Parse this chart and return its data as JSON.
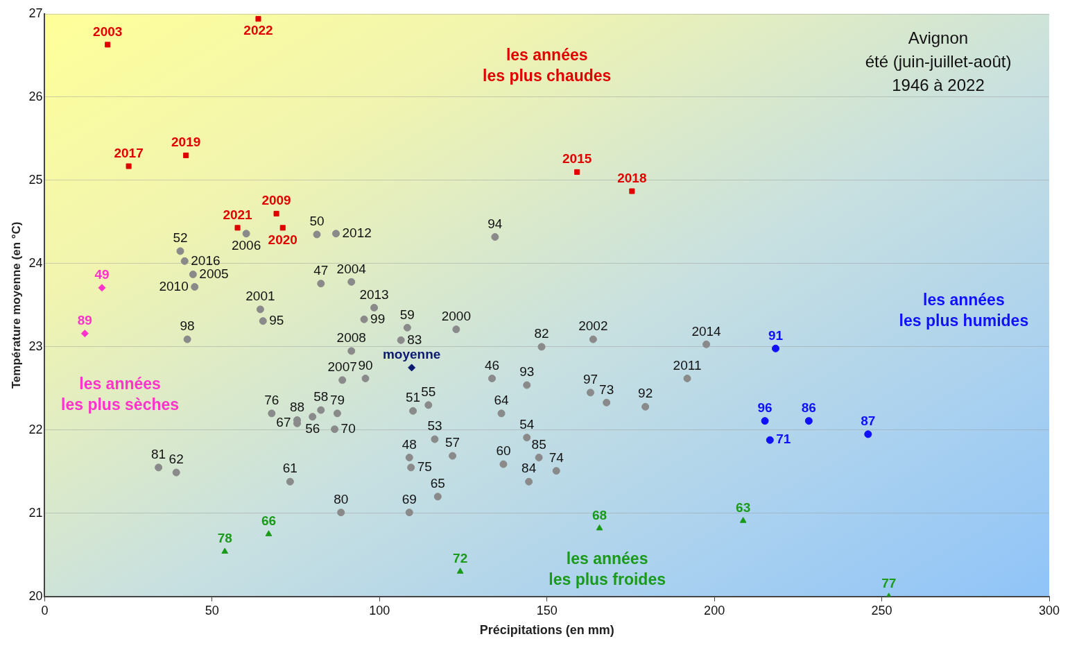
{
  "chart_data": {
    "type": "scatter",
    "title": "Avignon",
    "subtitle": "été (juin-juillet-août)\n1946 à 2022",
    "xlabel": "Précipitations (en mm)",
    "ylabel": "Température moyenne (en °C)",
    "xlim": [
      0,
      300
    ],
    "xticks": [
      0,
      50,
      100,
      150,
      200,
      250,
      300
    ],
    "ylim": [
      20,
      27
    ],
    "yticks": [
      20,
      21,
      22,
      23,
      24,
      25,
      26,
      27
    ],
    "grid": "y",
    "legend": false,
    "series": [
      {
        "color": "#8a8a8a",
        "marker": "circle",
        "x": [
          60.2,
          81.3,
          87.0,
          40.5,
          41.8,
          44.3,
          44.8,
          82.5,
          91.6,
          64.4,
          65.2,
          95.4,
          98.4,
          42.6,
          91.6,
          88.9,
          95.8,
          67.8,
          75.4,
          75.4,
          82.5,
          80.0,
          87.4,
          86.6,
          34.0,
          39.3,
          73.3,
          88.5,
          134.5,
          108.3,
          106.4,
          122.9,
          148.4,
          163.8,
          197.6,
          133.6,
          144.0,
          163.0,
          167.8,
          191.9,
          110.0,
          114.6,
          136.4,
          179.4,
          116.5,
          108.9,
          109.4,
          121.8,
          137.0,
          144.0,
          147.6,
          152.8,
          144.6,
          117.4,
          108.9
        ],
        "values": [
          24.36,
          24.35,
          24.36,
          24.15,
          24.03,
          23.87,
          23.72,
          23.76,
          23.78,
          23.45,
          23.31,
          23.33,
          23.47,
          23.09,
          22.95,
          22.6,
          22.62,
          22.2,
          22.12,
          22.08,
          22.24,
          22.16,
          22.2,
          22.01,
          21.55,
          21.49,
          21.38,
          21.01,
          24.32,
          23.23,
          23.08,
          23.21,
          23.0,
          23.09,
          23.03,
          22.62,
          22.54,
          22.45,
          22.33,
          22.62,
          22.23,
          22.3,
          22.2,
          22.28,
          21.89,
          21.67,
          21.55,
          21.69,
          21.59,
          21.91,
          21.67,
          21.51,
          21.38,
          21.2,
          21.01
        ]
      },
      {
        "color": "#e00000",
        "marker": "square",
        "x": [
          18.8,
          63.8,
          25.1,
          42.2,
          159.0,
          175.4,
          57.6,
          69.2,
          71.1
        ],
        "values": [
          26.63,
          26.94,
          25.17,
          25.3,
          25.1,
          24.87,
          24.43,
          24.6,
          24.43
        ]
      },
      {
        "color": "#1010ff",
        "marker": "circle",
        "x": [
          218.3,
          215.1,
          228.2,
          216.6,
          245.9
        ],
        "values": [
          22.98,
          22.11,
          22.11,
          21.88,
          21.95
        ]
      },
      {
        "color": "#ff33cc",
        "marker": "diamond",
        "x": [
          17.1,
          12.0
        ],
        "values": [
          23.71,
          23.16
        ]
      },
      {
        "color": "#1a9a1a",
        "marker": "triangle",
        "x": [
          53.8,
          66.9,
          124.1,
          165.7,
          208.6,
          252.1
        ],
        "values": [
          20.54,
          20.75,
          20.3,
          20.82,
          20.91,
          20.0
        ]
      },
      {
        "color": "#0b1a70",
        "marker": "diamond",
        "x": [
          109.6
        ],
        "values": [
          22.75
        ]
      }
    ],
    "annotations": [
      "les années\nles plus chaudes",
      "les années\nles plus humides",
      "les années\nles plus sèches",
      "les années\nles plus froides",
      {
        "text": "moyenne",
        "x": 109.6,
        "y": 22.75
      },
      {
        "text": "2003",
        "x": 18.8,
        "y": 26.63
      },
      {
        "text": "2022",
        "x": 63.8,
        "y": 26.94
      },
      {
        "text": "2017",
        "x": 25.1,
        "y": 25.17
      },
      {
        "text": "2019",
        "x": 42.2,
        "y": 25.3
      },
      {
        "text": "2015",
        "x": 159.0,
        "y": 25.1
      },
      {
        "text": "2018",
        "x": 175.4,
        "y": 24.87
      },
      {
        "text": "2021",
        "x": 57.6,
        "y": 24.43
      },
      {
        "text": "2009",
        "x": 69.2,
        "y": 24.6
      },
      {
        "text": "2020",
        "x": 71.1,
        "y": 24.43
      },
      {
        "text": "49",
        "x": 17.1,
        "y": 23.71
      },
      {
        "text": "89",
        "x": 12.0,
        "y": 23.16
      },
      {
        "text": "91",
        "x": 218.3,
        "y": 22.98
      },
      {
        "text": "96",
        "x": 215.1,
        "y": 22.11
      },
      {
        "text": "86",
        "x": 228.2,
        "y": 22.11
      },
      {
        "text": "71",
        "x": 216.6,
        "y": 21.88
      },
      {
        "text": "87",
        "x": 245.9,
        "y": 21.95
      },
      {
        "text": "78",
        "x": 53.8,
        "y": 20.54
      },
      {
        "text": "66",
        "x": 66.9,
        "y": 20.75
      },
      {
        "text": "72",
        "x": 124.1,
        "y": 20.3
      },
      {
        "text": "68",
        "x": 165.7,
        "y": 20.82
      },
      {
        "text": "63",
        "x": 208.6,
        "y": 20.91
      },
      {
        "text": "77",
        "x": 252.1,
        "y": 20.0
      },
      {
        "text": "2006",
        "x": 60.2,
        "y": 24.36
      },
      {
        "text": "50",
        "x": 81.3,
        "y": 24.35
      },
      {
        "text": "2012",
        "x": 87.0,
        "y": 24.36
      },
      {
        "text": "52",
        "x": 40.5,
        "y": 24.15
      },
      {
        "text": "2016",
        "x": 41.8,
        "y": 24.03
      },
      {
        "text": "2005",
        "x": 44.3,
        "y": 23.87
      },
      {
        "text": "2010",
        "x": 44.8,
        "y": 23.72
      },
      {
        "text": "47",
        "x": 82.5,
        "y": 23.76
      },
      {
        "text": "2004",
        "x": 91.6,
        "y": 23.78
      },
      {
        "text": "2001",
        "x": 64.4,
        "y": 23.45
      },
      {
        "text": "95",
        "x": 65.2,
        "y": 23.31
      },
      {
        "text": "99",
        "x": 95.4,
        "y": 23.33
      },
      {
        "text": "2013",
        "x": 98.4,
        "y": 23.47
      },
      {
        "text": "98",
        "x": 42.6,
        "y": 23.09
      },
      {
        "text": "2008",
        "x": 91.6,
        "y": 22.95
      },
      {
        "text": "2007",
        "x": 88.9,
        "y": 22.6
      },
      {
        "text": "90",
        "x": 95.8,
        "y": 22.62
      },
      {
        "text": "76",
        "x": 67.8,
        "y": 22.2
      },
      {
        "text": "88",
        "x": 75.4,
        "y": 22.12
      },
      {
        "text": "67",
        "x": 75.4,
        "y": 22.08
      },
      {
        "text": "58",
        "x": 82.5,
        "y": 22.24
      },
      {
        "text": "56",
        "x": 80.0,
        "y": 22.16
      },
      {
        "text": "79",
        "x": 87.4,
        "y": 22.2
      },
      {
        "text": "70",
        "x": 86.6,
        "y": 22.01
      },
      {
        "text": "81",
        "x": 34.0,
        "y": 21.55
      },
      {
        "text": "62",
        "x": 39.3,
        "y": 21.49
      },
      {
        "text": "61",
        "x": 73.3,
        "y": 21.38
      },
      {
        "text": "80",
        "x": 88.5,
        "y": 21.01
      },
      {
        "text": "94",
        "x": 134.5,
        "y": 24.32
      },
      {
        "text": "59",
        "x": 108.3,
        "y": 23.23
      },
      {
        "text": "83",
        "x": 106.4,
        "y": 23.08
      },
      {
        "text": "2000",
        "x": 122.9,
        "y": 23.21
      },
      {
        "text": "82",
        "x": 148.4,
        "y": 23.0
      },
      {
        "text": "2002",
        "x": 163.8,
        "y": 23.09
      },
      {
        "text": "2014",
        "x": 197.6,
        "y": 23.03
      },
      {
        "text": "46",
        "x": 133.6,
        "y": 22.62
      },
      {
        "text": "93",
        "x": 144.0,
        "y": 22.54
      },
      {
        "text": "97",
        "x": 163.0,
        "y": 22.45
      },
      {
        "text": "73",
        "x": 167.8,
        "y": 22.33
      },
      {
        "text": "2011",
        "x": 191.9,
        "y": 22.62
      },
      {
        "text": "51",
        "x": 110.0,
        "y": 22.23
      },
      {
        "text": "55",
        "x": 114.6,
        "y": 22.3
      },
      {
        "text": "64",
        "x": 136.4,
        "y": 22.2
      },
      {
        "text": "92",
        "x": 179.4,
        "y": 22.28
      },
      {
        "text": "53",
        "x": 116.5,
        "y": 21.89
      },
      {
        "text": "48",
        "x": 108.9,
        "y": 21.67
      },
      {
        "text": "75",
        "x": 109.4,
        "y": 21.55
      },
      {
        "text": "57",
        "x": 121.8,
        "y": 21.69
      },
      {
        "text": "60",
        "x": 137.0,
        "y": 21.59
      },
      {
        "text": "54",
        "x": 144.0,
        "y": 21.91
      },
      {
        "text": "85",
        "x": 147.6,
        "y": 21.67
      },
      {
        "text": "74",
        "x": 152.8,
        "y": 21.51
      },
      {
        "text": "84",
        "x": 144.6,
        "y": 21.38
      },
      {
        "text": "65",
        "x": 117.4,
        "y": 21.2
      },
      {
        "text": "69",
        "x": 108.9,
        "y": 21.01
      }
    ]
  }
}
